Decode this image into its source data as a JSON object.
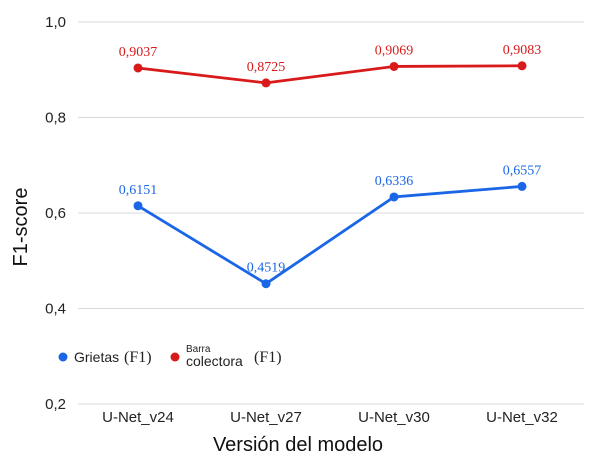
{
  "chart_data": {
    "type": "line",
    "title": "",
    "xlabel": "Versión del modelo",
    "ylabel": "F1-score",
    "categories": [
      "U-Net_v24",
      "U-Net_v27",
      "U-Net_v30",
      "U-Net_v32"
    ],
    "ylim": [
      0.2,
      1.0
    ],
    "yticks": [
      "0,2",
      "0,4",
      "0,6",
      "0,8",
      "1,0"
    ],
    "grid": true,
    "legend_position": "bottom-left",
    "series": [
      {
        "name": "Grietas (F1)",
        "legend_main": "Grietas",
        "legend_suffix": "(F1)",
        "color": "#1a66e6",
        "values": [
          0.6151,
          0.4519,
          0.6336,
          0.6557
        ],
        "labels": [
          "0,6151",
          "0,4519",
          "0,6336",
          "0,6557"
        ]
      },
      {
        "name": "Barra colectora (F1)",
        "legend_top": "Barra",
        "legend_main": "colectora",
        "legend_suffix": "(F1)",
        "color": "#d91a1a",
        "values": [
          0.9037,
          0.8725,
          0.9069,
          0.9083
        ],
        "labels": [
          "0,9037",
          "0,8725",
          "0,9069",
          "0,9083"
        ]
      }
    ]
  }
}
